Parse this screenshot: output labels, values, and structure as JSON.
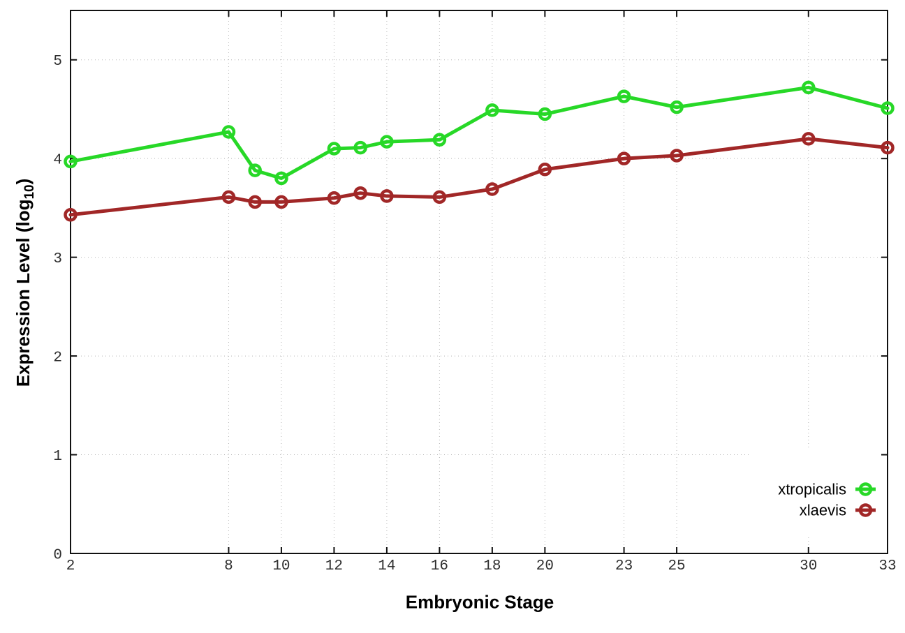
{
  "labels": {
    "y_prefix": "Expression Level (log",
    "y_sub": "10",
    "y_suffix": ")",
    "x": "Embryonic Stage"
  },
  "legend": {
    "entries": [
      "xtropicalis",
      "xlaevis"
    ],
    "position": "inside-bottom-right"
  },
  "colors": {
    "xtropicalis": "#27d827",
    "xlaevis": "#a12727",
    "grid": "#b5b5b5",
    "frame": "#111111",
    "tick_text": "#2e2e2e",
    "legend_background": "#ffffff"
  },
  "chart_data": {
    "type": "line",
    "title": "",
    "xlabel": "Embryonic Stage",
    "ylabel": "Expression Level (log10)",
    "xlim": [
      2,
      33
    ],
    "ylim": [
      0,
      5.5
    ],
    "grid": true,
    "x_ticks": [
      2,
      8,
      10,
      12,
      14,
      16,
      18,
      20,
      23,
      25,
      30,
      33
    ],
    "y_ticks": [
      0,
      1,
      2,
      3,
      4,
      5
    ],
    "x": [
      2,
      8,
      9,
      10,
      12,
      13,
      14,
      16,
      18,
      20,
      23,
      25,
      30,
      33
    ],
    "series": [
      {
        "name": "xtropicalis",
        "color": "#27d827",
        "values": [
          3.97,
          4.27,
          3.88,
          3.8,
          4.1,
          4.11,
          4.17,
          4.19,
          4.49,
          4.45,
          4.63,
          4.52,
          4.72,
          4.51
        ]
      },
      {
        "name": "xlaevis",
        "color": "#a12727",
        "values": [
          3.43,
          3.61,
          3.56,
          3.56,
          3.6,
          3.65,
          3.62,
          3.61,
          3.69,
          3.89,
          4.0,
          4.03,
          4.2,
          4.11
        ]
      }
    ]
  }
}
